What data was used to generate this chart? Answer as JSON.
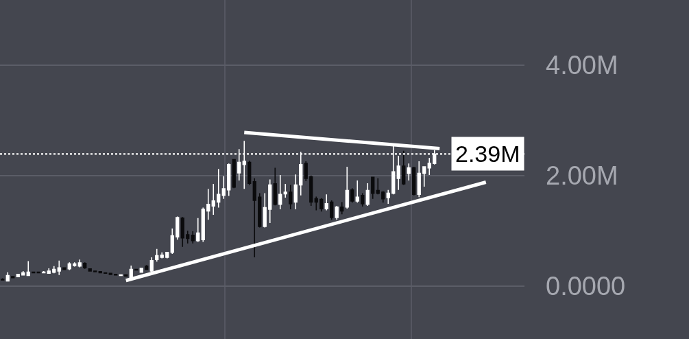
{
  "chart_data": {
    "type": "candlestick",
    "categories": [
      null,
      null,
      null,
      null,
      null,
      null,
      null,
      null,
      null,
      null,
      null,
      null,
      null,
      null,
      null,
      null,
      null,
      null,
      null,
      null,
      null,
      null,
      null,
      null,
      null,
      null,
      null,
      null,
      null,
      null,
      null,
      null,
      null,
      null,
      null,
      null,
      null,
      null,
      null,
      null,
      null,
      null,
      null,
      null,
      null,
      null,
      null,
      null,
      null,
      null,
      null,
      null,
      null,
      null,
      null,
      null,
      null,
      null,
      null,
      null,
      null,
      null,
      null,
      null,
      null,
      null,
      null,
      null,
      null,
      null,
      null,
      null,
      null,
      null,
      null,
      null,
      null,
      null,
      null,
      null,
      null,
      null,
      null,
      null,
      null,
      null,
      null,
      null,
      null,
      null,
      null,
      null,
      null,
      null,
      null,
      null,
      null,
      null,
      null,
      null,
      null,
      null
    ],
    "ohlc": [
      [
        0.12,
        0.14,
        0.1,
        0.11
      ],
      [
        0.09,
        0.25,
        0.08,
        0.19
      ],
      [
        0.17,
        0.18,
        0.14,
        0.15
      ],
      [
        0.17,
        0.22,
        0.16,
        0.21
      ],
      [
        0.2,
        0.27,
        0.19,
        0.24
      ],
      [
        0.19,
        0.45,
        0.18,
        0.25
      ],
      [
        0.25,
        0.26,
        0.23,
        0.24
      ],
      [
        0.25,
        0.26,
        0.23,
        0.24
      ],
      [
        0.24,
        0.27,
        0.23,
        0.25
      ],
      [
        0.23,
        0.32,
        0.22,
        0.27
      ],
      [
        0.25,
        0.36,
        0.23,
        0.3
      ],
      [
        0.27,
        0.46,
        0.2,
        0.33
      ],
      [
        0.33,
        0.34,
        0.29,
        0.3
      ],
      [
        0.31,
        0.43,
        0.29,
        0.4
      ],
      [
        0.37,
        0.43,
        0.35,
        0.4
      ],
      [
        0.36,
        0.48,
        0.34,
        0.42
      ],
      [
        0.41,
        0.43,
        0.31,
        0.33
      ],
      [
        0.31,
        0.32,
        0.26,
        0.27
      ],
      [
        0.27,
        0.28,
        0.25,
        0.26
      ],
      [
        0.26,
        0.27,
        0.23,
        0.24
      ],
      [
        0.24,
        0.25,
        0.22,
        0.23
      ],
      [
        0.23,
        0.24,
        0.2,
        0.21
      ],
      [
        0.21,
        0.22,
        0.19,
        0.2
      ],
      [
        0.19,
        0.21,
        0.18,
        0.2
      ],
      [
        0.2,
        0.21,
        0.17,
        0.18
      ],
      [
        0.15,
        0.37,
        0.13,
        0.3
      ],
      [
        0.3,
        0.31,
        0.28,
        0.29
      ],
      [
        0.25,
        0.33,
        0.24,
        0.32
      ],
      [
        0.36,
        0.38,
        0.29,
        0.3
      ],
      [
        0.27,
        0.52,
        0.25,
        0.46
      ],
      [
        0.48,
        0.67,
        0.44,
        0.55
      ],
      [
        0.52,
        0.61,
        0.5,
        0.56
      ],
      [
        0.52,
        0.62,
        0.5,
        0.61
      ],
      [
        0.61,
        1.04,
        0.58,
        0.91
      ],
      [
        0.89,
        1.26,
        0.84,
        1.24
      ],
      [
        1.23,
        1.25,
        0.71,
        0.87
      ],
      [
        0.93,
        1.0,
        0.77,
        0.86
      ],
      [
        0.92,
        0.99,
        0.77,
        0.82
      ],
      [
        0.82,
        1.23,
        0.8,
        0.96
      ],
      [
        0.84,
        1.42,
        0.8,
        1.39
      ],
      [
        1.36,
        1.76,
        1.2,
        1.48
      ],
      [
        1.45,
        1.85,
        1.29,
        1.54
      ],
      [
        1.52,
        2.12,
        1.42,
        1.66
      ],
      [
        1.64,
        1.99,
        1.58,
        1.76
      ],
      [
        1.74,
        2.22,
        1.63,
        2.2
      ],
      [
        2.29,
        2.3,
        1.77,
        1.79
      ],
      [
        2.05,
        2.48,
        1.91,
        2.24
      ],
      [
        2.2,
        2.63,
        1.76,
        2.26
      ],
      [
        2.24,
        2.27,
        1.83,
        1.86
      ],
      [
        1.89,
        1.95,
        0.52,
        1.55
      ],
      [
        1.61,
        1.68,
        1.06,
        1.08
      ],
      [
        1.08,
        1.68,
        1.06,
        1.42
      ],
      [
        1.39,
        1.93,
        1.14,
        1.83
      ],
      [
        1.85,
        2.14,
        1.46,
        1.48
      ],
      [
        1.48,
        2.01,
        1.39,
        1.66
      ],
      [
        1.67,
        1.85,
        1.6,
        1.7
      ],
      [
        1.7,
        1.83,
        1.39,
        1.49
      ],
      [
        1.52,
        2.02,
        1.39,
        1.83
      ],
      [
        1.83,
        2.43,
        1.64,
        2.2
      ],
      [
        2.22,
        2.26,
        1.9,
        1.95
      ],
      [
        1.98,
        2.0,
        1.45,
        1.52
      ],
      [
        1.58,
        1.62,
        1.37,
        1.52
      ],
      [
        1.57,
        1.59,
        1.35,
        1.4
      ],
      [
        1.4,
        1.66,
        1.37,
        1.49
      ],
      [
        1.52,
        1.55,
        1.2,
        1.24
      ],
      [
        1.24,
        1.45,
        1.2,
        1.43
      ],
      [
        1.43,
        1.52,
        1.3,
        1.36
      ],
      [
        1.43,
        2.16,
        1.4,
        1.73
      ],
      [
        1.74,
        1.77,
        1.51,
        1.54
      ],
      [
        1.54,
        1.91,
        1.51,
        1.61
      ],
      [
        1.64,
        1.68,
        1.44,
        1.49
      ],
      [
        1.48,
        1.86,
        1.45,
        1.73
      ],
      [
        1.97,
        1.98,
        1.58,
        1.68
      ],
      [
        1.73,
        1.95,
        1.66,
        1.68
      ],
      [
        1.7,
        1.72,
        1.51,
        1.58
      ],
      [
        1.6,
        1.74,
        1.49,
        1.68
      ],
      [
        1.68,
        2.55,
        1.66,
        2.07
      ],
      [
        1.95,
        2.36,
        1.74,
        2.17
      ],
      [
        2.17,
        2.45,
        1.83,
        1.85
      ],
      [
        2.04,
        2.22,
        1.91,
        2.14
      ],
      [
        2.14,
        2.16,
        1.64,
        1.66
      ],
      [
        1.66,
        2.26,
        1.61,
        2.04
      ],
      [
        2.04,
        2.17,
        1.8,
        2.16
      ],
      [
        2.14,
        2.32,
        2.01,
        2.22
      ],
      [
        2.22,
        2.46,
        2.2,
        2.39
      ],
      null,
      null,
      null,
      null,
      null,
      null,
      null,
      null,
      null,
      null,
      null,
      null,
      null,
      null,
      null,
      null,
      null
    ],
    "colors": [
      "#0b0b0d",
      "#ffffff",
      "#0b0b0d",
      "#ffffff",
      "#ffffff",
      "#ffffff",
      "#0b0b0d",
      "#0b0b0d",
      "#ffffff",
      "#ffffff",
      "#ffffff",
      "#ffffff",
      "#0b0b0d",
      "#ffffff",
      "#ffffff",
      "#ffffff",
      "#0b0b0d",
      "#0b0b0d",
      "#0b0b0d",
      "#0b0b0d",
      "#0b0b0d",
      "#0b0b0d",
      "#0b0b0d",
      "#ffffff",
      "#0b0b0d",
      "#ffffff",
      "#0b0b0d",
      "#ffffff",
      "#0b0b0d",
      "#ffffff",
      "#ffffff",
      "#ffffff",
      "#ffffff",
      "#ffffff",
      "#ffffff",
      "#0b0b0d",
      "#0b0b0d",
      "#0b0b0d",
      "#ffffff",
      "#ffffff",
      "#ffffff",
      "#ffffff",
      "#ffffff",
      "#ffffff",
      "#ffffff",
      "#0b0b0d",
      "#ffffff",
      "#ffffff",
      "#0b0b0d",
      "#0b0b0d",
      "#0b0b0d",
      "#ffffff",
      "#ffffff",
      "#0b0b0d",
      "#ffffff",
      "#ffffff",
      "#0b0b0d",
      "#ffffff",
      "#ffffff",
      "#0b0b0d",
      "#0b0b0d",
      "#0b0b0d",
      "#0b0b0d",
      "#ffffff",
      "#0b0b0d",
      "#ffffff",
      "#0b0b0d",
      "#ffffff",
      "#0b0b0d",
      "#ffffff",
      "#0b0b0d",
      "#ffffff",
      "#0b0b0d",
      "#0b0b0d",
      "#0b0b0d",
      "#ffffff",
      "#ffffff",
      "#ffffff",
      "#0b0b0d",
      "#ffffff",
      "#0b0b0d",
      "#ffffff",
      "#ffffff",
      "#ffffff",
      "#ffffff",
      null,
      null,
      null,
      null,
      null,
      null,
      null,
      null,
      null,
      null,
      null,
      null,
      null,
      null,
      null,
      null,
      null
    ],
    "series": [
      {
        "type": "line",
        "color": "#ffffff",
        "values": [
          null,
          null,
          null,
          null,
          null,
          null,
          null,
          null,
          null,
          null,
          null,
          null,
          null,
          null,
          null,
          null,
          null,
          null,
          null,
          null,
          null,
          null,
          null,
          null,
          0.1,
          null,
          null,
          null,
          null,
          null,
          null,
          null,
          null,
          null,
          null,
          null,
          null,
          null,
          null,
          null,
          null,
          null,
          null,
          null,
          null,
          null,
          null,
          null,
          null,
          null,
          null,
          null,
          null,
          null,
          null,
          null,
          null,
          null,
          null,
          null,
          null,
          null,
          null,
          null,
          null,
          null,
          null,
          null,
          null,
          null,
          null,
          null,
          null,
          null,
          null,
          null,
          null,
          null,
          null,
          null,
          null,
          null,
          null,
          null,
          null,
          null,
          null,
          null,
          null,
          null,
          null,
          null,
          null,
          null,
          1.88,
          null,
          null,
          null,
          null,
          null,
          null,
          null
        ]
      },
      {
        "type": "line",
        "color": "#ffffff",
        "values": [
          null,
          null,
          null,
          null,
          null,
          null,
          null,
          null,
          null,
          null,
          null,
          null,
          null,
          null,
          null,
          null,
          null,
          null,
          null,
          null,
          null,
          null,
          null,
          null,
          null,
          null,
          null,
          null,
          null,
          null,
          null,
          null,
          null,
          null,
          null,
          null,
          null,
          null,
          null,
          null,
          null,
          null,
          null,
          null,
          null,
          null,
          null,
          2.78,
          null,
          null,
          null,
          null,
          null,
          null,
          null,
          null,
          null,
          null,
          null,
          null,
          null,
          null,
          null,
          null,
          null,
          null,
          null,
          null,
          null,
          null,
          null,
          null,
          null,
          null,
          null,
          null,
          null,
          null,
          null,
          null,
          null,
          null,
          null,
          null,
          null,
          2.49,
          null,
          null,
          null,
          null,
          null,
          null,
          null,
          null,
          null,
          null,
          null,
          null,
          null,
          null,
          null,
          null
        ]
      }
    ],
    "ylim": [
      -0.96,
      5.18
    ],
    "yticks": [
      {
        "value": 0,
        "label": "0.0000"
      },
      {
        "value": 2,
        "label": "2.00M"
      },
      {
        "value": 4,
        "label": "4.00M"
      }
    ],
    "ref_lines": [
      {
        "axis": "y",
        "value": 2.39,
        "label": "2.39M",
        "color": "#ffffff",
        "line_style": "dotted"
      }
    ],
    "grid": "y",
    "tick_labels": "y"
  }
}
